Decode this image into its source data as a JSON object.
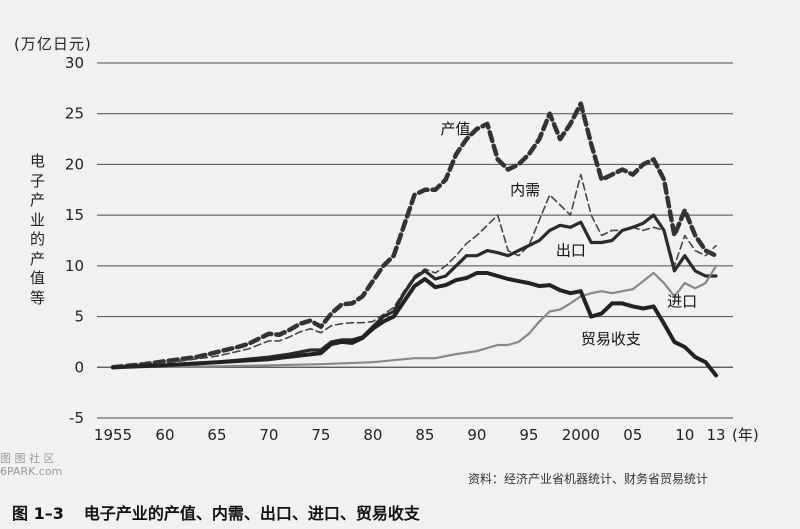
{
  "chart_data": {
    "type": "line",
    "unit_label": "(万亿日元)",
    "ylabel": "电子产业的产值等",
    "ylim": [
      -5,
      30
    ],
    "yticks": [
      -5,
      0,
      5,
      10,
      15,
      20,
      25,
      30
    ],
    "xlim": [
      1955,
      2013
    ],
    "xticks": [
      {
        "x": 1955,
        "label": "1955"
      },
      {
        "x": 1960,
        "label": "60"
      },
      {
        "x": 1965,
        "label": "65"
      },
      {
        "x": 1970,
        "label": "70"
      },
      {
        "x": 1975,
        "label": "75"
      },
      {
        "x": 1980,
        "label": "80"
      },
      {
        "x": 1985,
        "label": "85"
      },
      {
        "x": 1990,
        "label": "90"
      },
      {
        "x": 1995,
        "label": "95"
      },
      {
        "x": 2000,
        "label": "2000"
      },
      {
        "x": 2005,
        "label": "05"
      },
      {
        "x": 2010,
        "label": "10"
      },
      {
        "x": 2013,
        "label": "13"
      }
    ],
    "x_unit_label": "(年)",
    "grid": true,
    "series": [
      {
        "name": "产值",
        "style": "thick-dashed",
        "x": [
          1955,
          1958,
          1960,
          1963,
          1965,
          1967,
          1968,
          1970,
          1971,
          1972,
          1973,
          1974,
          1975,
          1976,
          1977,
          1978,
          1979,
          1980,
          1981,
          1982,
          1983,
          1984,
          1985,
          1986,
          1987,
          1988,
          1989,
          1990,
          1991,
          1992,
          1993,
          1994,
          1995,
          1996,
          1997,
          1998,
          1999,
          2000,
          2001,
          2002,
          2003,
          2004,
          2005,
          2006,
          2007,
          2008,
          2009,
          2010,
          2011,
          2012,
          2013
        ],
        "y": [
          0,
          0.3,
          0.6,
          1.0,
          1.5,
          2.0,
          2.3,
          3.3,
          3.2,
          3.7,
          4.3,
          4.6,
          4.0,
          5.3,
          6.2,
          6.3,
          7.0,
          8.5,
          10.0,
          11.0,
          14.0,
          17.0,
          17.5,
          17.5,
          18.5,
          21.0,
          22.5,
          23.5,
          24.0,
          20.5,
          19.5,
          20.0,
          21.0,
          22.5,
          25.0,
          22.5,
          24.0,
          26.0,
          22.0,
          18.5,
          19.0,
          19.5,
          19.0,
          20.0,
          20.5,
          18.5,
          13.0,
          15.5,
          13.0,
          11.5,
          11.0
        ]
      },
      {
        "name": "内需",
        "style": "thin-dashed",
        "x": [
          1955,
          1960,
          1965,
          1968,
          1970,
          1971,
          1972,
          1973,
          1974,
          1975,
          1976,
          1977,
          1978,
          1979,
          1980,
          1981,
          1982,
          1983,
          1984,
          1985,
          1986,
          1987,
          1988,
          1989,
          1990,
          1991,
          1992,
          1993,
          1994,
          1995,
          1996,
          1997,
          1998,
          1999,
          2000,
          2001,
          2002,
          2003,
          2004,
          2005,
          2006,
          2007,
          2008,
          2009,
          2010,
          2011,
          2012,
          2013
        ],
        "y": [
          0,
          0.4,
          1.1,
          1.8,
          2.6,
          2.6,
          3.0,
          3.5,
          3.8,
          3.4,
          4.1,
          4.3,
          4.4,
          4.4,
          4.5,
          5.2,
          5.9,
          7.5,
          9.0,
          9.7,
          9.3,
          10.0,
          11.0,
          12.2,
          13.0,
          14.0,
          15.0,
          11.5,
          11.0,
          12.0,
          14.5,
          17.0,
          16.0,
          15.0,
          19.0,
          15.0,
          13.0,
          13.5,
          13.5,
          13.8,
          13.5,
          13.8,
          13.5,
          10.0,
          13.0,
          11.5,
          11.0,
          12.0
        ]
      },
      {
        "name": "出口",
        "style": "solid-dark",
        "x": [
          1955,
          1960,
          1965,
          1970,
          1972,
          1974,
          1975,
          1976,
          1977,
          1978,
          1979,
          1980,
          1981,
          1982,
          1983,
          1984,
          1985,
          1986,
          1987,
          1988,
          1989,
          1990,
          1991,
          1992,
          1993,
          1994,
          1995,
          1996,
          1997,
          1998,
          1999,
          2000,
          2001,
          2002,
          2003,
          2004,
          2005,
          2006,
          2007,
          2008,
          2009,
          2010,
          2011,
          2012,
          2013
        ],
        "y": [
          0,
          0.2,
          0.5,
          1.0,
          1.3,
          1.7,
          1.7,
          2.5,
          2.7,
          2.7,
          3.0,
          4.0,
          5.0,
          5.5,
          7.3,
          8.8,
          9.5,
          8.7,
          9.0,
          10.0,
          11.0,
          11.0,
          11.5,
          11.3,
          11.0,
          11.5,
          12.0,
          12.5,
          13.5,
          14.0,
          13.8,
          14.3,
          12.3,
          12.3,
          12.5,
          13.5,
          13.8,
          14.2,
          15.0,
          13.5,
          9.5,
          11.0,
          9.5,
          9.0,
          9.0
        ]
      },
      {
        "name": "进口",
        "style": "solid-gray",
        "x": [
          1955,
          1960,
          1965,
          1970,
          1975,
          1980,
          1982,
          1984,
          1986,
          1988,
          1990,
          1992,
          1993,
          1994,
          1995,
          1996,
          1997,
          1998,
          1999,
          2000,
          2001,
          2002,
          2003,
          2004,
          2005,
          2006,
          2007,
          2008,
          2009,
          2010,
          2011,
          2012,
          2013
        ],
        "y": [
          0,
          0.05,
          0.1,
          0.2,
          0.3,
          0.5,
          0.7,
          0.9,
          0.9,
          1.3,
          1.6,
          2.2,
          2.2,
          2.5,
          3.3,
          4.5,
          5.5,
          5.7,
          6.3,
          7.0,
          7.3,
          7.5,
          7.3,
          7.5,
          7.7,
          8.5,
          9.3,
          8.3,
          7.0,
          8.3,
          7.8,
          8.3,
          10.0
        ]
      },
      {
        "name": "贸易收支",
        "style": "solid-thick",
        "x": [
          1955,
          1960,
          1965,
          1970,
          1975,
          1976,
          1977,
          1978,
          1979,
          1980,
          1981,
          1982,
          1983,
          1984,
          1985,
          1986,
          1987,
          1988,
          1989,
          1990,
          1991,
          1992,
          1993,
          1994,
          1995,
          1996,
          1997,
          1998,
          1999,
          2000,
          2001,
          2002,
          2003,
          2004,
          2005,
          2006,
          2007,
          2008,
          2009,
          2010,
          2011,
          2012,
          2013
        ],
        "y": [
          0,
          0.2,
          0.5,
          0.8,
          1.4,
          2.3,
          2.5,
          2.4,
          2.9,
          3.8,
          4.5,
          5.0,
          6.5,
          8.0,
          8.7,
          7.9,
          8.1,
          8.6,
          8.8,
          9.3,
          9.3,
          9.0,
          8.7,
          8.5,
          8.3,
          8.0,
          8.1,
          7.6,
          7.3,
          7.5,
          5.0,
          5.3,
          6.3,
          6.3,
          6.0,
          5.8,
          6.0,
          4.3,
          2.5,
          2.0,
          1.0,
          0.5,
          -0.8
        ]
      }
    ],
    "annotations": [
      {
        "series": "产值",
        "text": "产值"
      },
      {
        "series": "内需",
        "text": "内需"
      },
      {
        "series": "出口",
        "text": "出口"
      },
      {
        "series": "进口",
        "text": "进口"
      },
      {
        "series": "贸易收支",
        "text": "贸易收支"
      }
    ]
  },
  "source_note": "资料：经济产业省机器统计、财务省贸易统计",
  "caption": {
    "number": "图 1–3",
    "text": "电子产业的产值、内需、出口、进口、贸易收支"
  },
  "watermark": {
    "line1": "图 图 社 区",
    "line2": "6PARK.com"
  }
}
